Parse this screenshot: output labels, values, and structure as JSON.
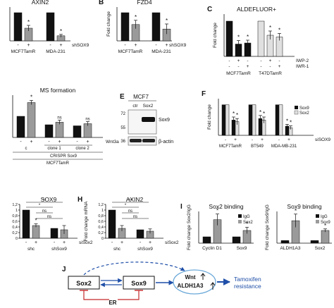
{
  "colors": {
    "black": "#111111",
    "grey": "#9a9a9a",
    "light": "#e0e0e0",
    "white": "#ffffff",
    "blue": "#1f4fa8",
    "red": "#c4282b"
  },
  "chart_data": [
    {
      "id": "A",
      "type": "bar",
      "panel_label": "",
      "title": "AXIN2",
      "ylabel": "",
      "ylim": [
        0,
        1.2
      ],
      "ytick_labels": [],
      "groups": [
        "MCF7TamR",
        "MDA-231"
      ],
      "signs": [
        "-",
        "+"
      ],
      "treatment": "shSOX9",
      "values": [
        [
          1.0,
          0.45
        ],
        [
          1.0,
          0.18
        ]
      ],
      "errors": [
        [
          0,
          0.1
        ],
        [
          0,
          0.05
        ]
      ],
      "stars": [
        [
          "",
          "*"
        ],
        [
          "",
          "*"
        ]
      ],
      "colors": [
        [
          "black",
          "grey"
        ],
        [
          "black",
          "grey"
        ]
      ]
    },
    {
      "id": "B",
      "type": "bar",
      "panel_label": "B",
      "title": "FZD4",
      "ylabel": "Fold change",
      "ylim": [
        0,
        1.2
      ],
      "ytick_labels": [],
      "groups": [
        "MCF7TamR",
        "MDA-231"
      ],
      "signs": [
        "-",
        "+"
      ],
      "treatment": "shSOX9",
      "values": [
        [
          1.0,
          0.58
        ],
        [
          1.0,
          0.42
        ]
      ],
      "errors": [
        [
          0,
          0.15
        ],
        [
          0,
          0.18
        ]
      ],
      "stars": [
        [
          "",
          "*"
        ],
        [
          "",
          "*"
        ]
      ],
      "colors": [
        [
          "black",
          "grey"
        ],
        [
          "black",
          "grey"
        ]
      ]
    },
    {
      "id": "C",
      "type": "bar",
      "panel_label": "C",
      "title": "ALDEFLUOR+",
      "ylabel": "Fold change",
      "ylim": [
        0,
        1.2
      ],
      "ytick_labels": [],
      "groups": [
        "MCF7TamR",
        "T47DTamR"
      ],
      "treatments": [
        "IWP-2",
        "IWR-1"
      ],
      "treatment_rows": [
        [
          "-",
          "+",
          "-"
        ],
        [
          "-",
          "-",
          "+"
        ]
      ],
      "values": [
        [
          1.0,
          0.35,
          0.38
        ],
        [
          1.0,
          0.6,
          0.55
        ]
      ],
      "errors": [
        [
          0,
          0.1,
          0.08
        ],
        [
          0,
          0.12,
          0.1
        ]
      ],
      "stars": [
        [
          "",
          "*",
          "*"
        ],
        [
          "",
          "*",
          "*"
        ]
      ],
      "colors": [
        [
          "black",
          "black",
          "black"
        ],
        [
          "light",
          "light",
          "light"
        ]
      ]
    },
    {
      "id": "D",
      "type": "bar",
      "panel_label": "",
      "title": "MS formation",
      "ylabel": "",
      "ylim": [
        0,
        2.0
      ],
      "ytick_labels": [],
      "groups": [
        "c",
        "clone 1",
        "clone 2"
      ],
      "signs": [
        "-",
        "+"
      ],
      "treatment": "Wnt3a",
      "group_labels_under": [
        "CRISPR Sox9",
        "MCF7TamR"
      ],
      "values": [
        [
          1.0,
          1.65
        ],
        [
          0.6,
          0.72
        ],
        [
          0.55,
          0.65
        ]
      ],
      "errors": [
        [
          0,
          0.1
        ],
        [
          0,
          0.1
        ],
        [
          0,
          0.1
        ]
      ],
      "stars": [
        [
          "",
          "*"
        ],
        [
          "",
          "ns"
        ],
        [
          "",
          "ns"
        ]
      ],
      "colors": [
        [
          "black",
          "grey"
        ],
        [
          "black",
          "grey"
        ],
        [
          "black",
          "grey"
        ]
      ]
    },
    {
      "id": "F",
      "type": "bar",
      "panel_label": "F",
      "title": "",
      "ylabel": "Fold change",
      "ylim": [
        0,
        1.2
      ],
      "ytick_labels": [],
      "legend": [
        "Sox9",
        "Sox2"
      ],
      "groups": [
        "MCF7TamR",
        "BT549",
        "MDA-MB-231"
      ],
      "signs": [
        "-",
        "+"
      ],
      "treatment": "siSOX9",
      "values": [
        [
          [
            1.0,
            1.0
          ],
          [
            0.5,
            0.45
          ]
        ],
        [
          [
            1.0,
            1.0
          ],
          [
            0.55,
            0.5
          ]
        ],
        [
          [
            1.0,
            1.0
          ],
          [
            0.3,
            0.25
          ]
        ]
      ],
      "errors": [
        [
          [
            0,
            0
          ],
          [
            0.1,
            0.1
          ]
        ],
        [
          [
            0,
            0
          ],
          [
            0.1,
            0.1
          ]
        ],
        [
          [
            0,
            0
          ],
          [
            0.06,
            0.06
          ]
        ]
      ],
      "stars": [
        [
          "",
          "*",
          "*"
        ],
        [
          "",
          "*",
          "*"
        ],
        [
          "",
          "*",
          "*"
        ]
      ]
    },
    {
      "id": "G",
      "type": "bar",
      "panel_label": "",
      "title": "SOX9",
      "ylabel": "",
      "ylim": [
        0,
        1.2
      ],
      "ytick_labels": [
        "1,2",
        "1",
        "0,8",
        "0,6",
        "0,4",
        "0,2",
        "0"
      ],
      "groups": [
        "shc",
        "shSox9"
      ],
      "signs": [
        "-",
        "+"
      ],
      "treatment": "siSox2",
      "values": [
        [
          1.0,
          0.45
        ],
        [
          0.35,
          0.3
        ]
      ],
      "errors": [
        [
          0,
          0.06
        ],
        [
          0,
          0.15
        ]
      ],
      "stars": [
        [
          "",
          "*"
        ],
        [
          "",
          ""
        ]
      ],
      "colors": [
        [
          "black",
          "grey"
        ],
        [
          "black",
          "grey"
        ]
      ],
      "brackets": [
        "**",
        "*",
        "ns",
        "ns"
      ]
    },
    {
      "id": "H",
      "type": "bar",
      "panel_label": "H",
      "title": "AXIN2",
      "ylabel": "Fold change mRNA",
      "ylim": [
        0,
        1.2
      ],
      "ytick_labels": [
        "1,2",
        "1",
        "0,8",
        "0,6",
        "0,4",
        "0,2",
        "0"
      ],
      "groups": [
        "shc",
        "shSox9"
      ],
      "signs": [
        "-",
        "+"
      ],
      "treatment": "siSox2",
      "values": [
        [
          1.0,
          0.35
        ],
        [
          0.3,
          0.25
        ]
      ],
      "errors": [
        [
          0,
          0.1
        ],
        [
          0,
          0.08
        ]
      ],
      "stars": [
        [
          "",
          ""
        ],
        [
          "",
          ""
        ]
      ],
      "colors": [
        [
          "black",
          "grey"
        ],
        [
          "black",
          "grey"
        ]
      ],
      "brackets": [
        "**",
        "*",
        "ns",
        "ns"
      ]
    },
    {
      "id": "I1",
      "type": "bar",
      "panel_label": "I",
      "title": "Sox2 binding",
      "ylabel": "Fold change Sox2/IgG",
      "ylim": [
        0,
        5
      ],
      "ytick_labels": [],
      "legend": [
        "IgG",
        "Sox2"
      ],
      "groups": [
        "Cyclin D1",
        "Sox9"
      ],
      "values": [
        [
          1.0,
          3.7
        ],
        [
          1.0,
          2.0
        ]
      ],
      "errors": [
        [
          0,
          0.9
        ],
        [
          0,
          0.5
        ]
      ],
      "stars": [
        [
          "",
          "*"
        ],
        [
          "",
          "*"
        ]
      ],
      "colors": [
        [
          "black",
          "grey"
        ],
        [
          "black",
          "grey"
        ]
      ]
    },
    {
      "id": "I2",
      "type": "bar",
      "panel_label": "",
      "title": "Sox9 binding",
      "ylabel": "Fold change Sox9/IgG",
      "ylim": [
        0,
        12
      ],
      "ytick_labels": [],
      "legend": [
        "IgG",
        "Sox9"
      ],
      "groups": [
        "ALDH1A3",
        "Sox2"
      ],
      "values": [
        [
          1.0,
          8.5
        ],
        [
          1.0,
          4.8
        ]
      ],
      "errors": [
        [
          0,
          2.5
        ],
        [
          0,
          0.6
        ]
      ],
      "stars": [
        [
          "",
          "*"
        ],
        [
          "",
          "*"
        ]
      ],
      "colors": [
        [
          "black",
          "grey"
        ],
        [
          "black",
          "grey"
        ]
      ]
    }
  ],
  "western": {
    "panel_label": "E",
    "title": "MCF7",
    "lanes": [
      "ctr",
      "Sox2"
    ],
    "markers": [
      "72",
      "55",
      "36"
    ],
    "bands": [
      "Sox9",
      "β-actin"
    ]
  },
  "diagram": {
    "panel_label": "J",
    "sox2": "Sox2",
    "sox9": "Sox9",
    "wnt": "Wnt",
    "aldh": "ALDH1A3",
    "outcome_1": "Tamoxifen",
    "outcome_2": "resistance",
    "er": "ER"
  }
}
